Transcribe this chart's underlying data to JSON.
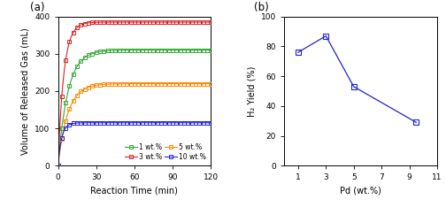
{
  "panel_a": {
    "title": "(a)",
    "xlabel": "Reaction Time (min)",
    "ylabel": "Volume of Released Gas (mL)",
    "xlim": [
      0,
      120
    ],
    "ylim": [
      0,
      400
    ],
    "xticks": [
      0,
      30,
      60,
      90,
      120
    ],
    "yticks": [
      0,
      100,
      200,
      300,
      400
    ],
    "series_order": [
      "1wt",
      "3wt",
      "5wt",
      "10wt"
    ],
    "series": {
      "1wt": {
        "label": "1 wt.%",
        "color": "#33aa33",
        "plateau": 310,
        "k": 0.13
      },
      "3wt": {
        "label": "3 wt.%",
        "color": "#dd2222",
        "plateau": 385,
        "k": 0.22
      },
      "5wt": {
        "label": "5 wt.%",
        "color": "#ff8800",
        "plateau": 220,
        "k": 0.13
      },
      "10wt": {
        "label": "10 wt.%",
        "color": "#2222dd",
        "plateau": 115,
        "k": 0.35
      }
    },
    "marker_interval": 3,
    "marker_size": 3.2,
    "line_width": 0.8
  },
  "panel_b": {
    "title": "(b)",
    "xlabel": "Pd (wt.%)",
    "ylabel": "H₂ Yield (%)",
    "xlim": [
      0,
      11
    ],
    "ylim": [
      0,
      100
    ],
    "xticks": [
      1,
      3,
      5,
      7,
      9,
      11
    ],
    "yticks": [
      0,
      20,
      40,
      60,
      80,
      100
    ],
    "x": [
      1,
      3,
      5,
      9.5
    ],
    "y": [
      76,
      87,
      53,
      29
    ],
    "color": "#2222cc",
    "marker_size": 4.0,
    "line_width": 0.9
  }
}
